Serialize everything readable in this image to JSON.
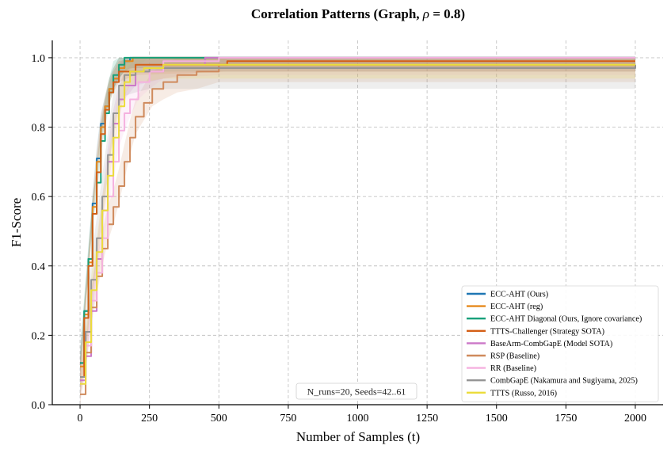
{
  "chart_data": {
    "type": "line",
    "title": "Correlation Patterns (Graph, ρ = 0.8)",
    "title_main": "Correlation Patterns (Graph, ",
    "title_symbol": "ρ",
    "title_tail": " = 0.8)",
    "xlabel": "Number of Samples (t)",
    "ylabel": "F1-Score",
    "xlim": [
      -100,
      2100
    ],
    "ylim": [
      0,
      1.05
    ],
    "xticks": [
      0,
      250,
      500,
      750,
      1000,
      1250,
      1500,
      1750,
      2000
    ],
    "yticks": [
      0.0,
      0.2,
      0.4,
      0.6,
      0.8,
      1.0
    ],
    "grid": true,
    "legend_position": "lower-right",
    "annotation": "N_runs=20, Seeds=42..61",
    "series": [
      {
        "name": "ECC-AHT (Ours)",
        "color": "#1f77b4",
        "points": [
          [
            0,
            0.12
          ],
          [
            15,
            0.27
          ],
          [
            30,
            0.42
          ],
          [
            45,
            0.58
          ],
          [
            60,
            0.71
          ],
          [
            75,
            0.81
          ],
          [
            90,
            0.86
          ],
          [
            105,
            0.91
          ],
          [
            120,
            0.94
          ],
          [
            140,
            0.97
          ],
          [
            160,
            0.99
          ],
          [
            180,
            1.0
          ],
          [
            2000,
            1.0
          ]
        ],
        "band": 0.03
      },
      {
        "name": "ECC-AHT (reg)",
        "color": "#e6891c",
        "points": [
          [
            0,
            0.11
          ],
          [
            15,
            0.26
          ],
          [
            30,
            0.41
          ],
          [
            45,
            0.57
          ],
          [
            60,
            0.7
          ],
          [
            75,
            0.8
          ],
          [
            90,
            0.86
          ],
          [
            105,
            0.91
          ],
          [
            120,
            0.94
          ],
          [
            140,
            0.97
          ],
          [
            160,
            0.99
          ],
          [
            190,
            1.0
          ],
          [
            2000,
            1.0
          ]
        ],
        "band": 0.03
      },
      {
        "name": "ECC-AHT Diagonal (Ours, Ignore covariance)",
        "color": "#17a07a",
        "points": [
          [
            0,
            0.12
          ],
          [
            15,
            0.27
          ],
          [
            30,
            0.42
          ],
          [
            45,
            0.55
          ],
          [
            60,
            0.64
          ],
          [
            75,
            0.76
          ],
          [
            90,
            0.84
          ],
          [
            105,
            0.9
          ],
          [
            120,
            0.95
          ],
          [
            140,
            0.98
          ],
          [
            160,
            1.0
          ],
          [
            2000,
            1.0
          ]
        ],
        "band": 0.04
      },
      {
        "name": "TTTS-Challenger (Strategy SOTA)",
        "color": "#d45f16",
        "points": [
          [
            0,
            0.08
          ],
          [
            15,
            0.25
          ],
          [
            30,
            0.4
          ],
          [
            45,
            0.55
          ],
          [
            60,
            0.67
          ],
          [
            75,
            0.78
          ],
          [
            90,
            0.85
          ],
          [
            105,
            0.9
          ],
          [
            120,
            0.93
          ],
          [
            140,
            0.96
          ],
          [
            200,
            0.98
          ],
          [
            530,
            0.99
          ],
          [
            2000,
            0.99
          ]
        ],
        "band": 0.03
      },
      {
        "name": "BaseArm-CombGapE (Model SOTA)",
        "color": "#cc78c8",
        "points": [
          [
            0,
            0.07
          ],
          [
            20,
            0.14
          ],
          [
            40,
            0.27
          ],
          [
            60,
            0.42
          ],
          [
            80,
            0.56
          ],
          [
            100,
            0.7
          ],
          [
            120,
            0.81
          ],
          [
            140,
            0.88
          ],
          [
            160,
            0.92
          ],
          [
            200,
            0.96
          ],
          [
            300,
            0.98
          ],
          [
            450,
            1.0
          ],
          [
            2000,
            1.0
          ]
        ],
        "band": 0.04
      },
      {
        "name": "RSP (Baseline)",
        "color": "#cf8a5c",
        "points": [
          [
            0,
            0.03
          ],
          [
            20,
            0.15
          ],
          [
            40,
            0.28
          ],
          [
            60,
            0.37
          ],
          [
            80,
            0.45
          ],
          [
            100,
            0.52
          ],
          [
            120,
            0.57
          ],
          [
            140,
            0.63
          ],
          [
            160,
            0.7
          ],
          [
            180,
            0.77
          ],
          [
            200,
            0.83
          ],
          [
            230,
            0.87
          ],
          [
            260,
            0.91
          ],
          [
            300,
            0.93
          ],
          [
            350,
            0.95
          ],
          [
            420,
            0.96
          ],
          [
            500,
            0.98
          ],
          [
            2000,
            0.98
          ]
        ],
        "band": 0.05
      },
      {
        "name": "RR (Baseline)",
        "color": "#f5b1df",
        "points": [
          [
            0,
            0.06
          ],
          [
            20,
            0.17
          ],
          [
            40,
            0.3
          ],
          [
            60,
            0.38
          ],
          [
            80,
            0.48
          ],
          [
            100,
            0.6
          ],
          [
            120,
            0.7
          ],
          [
            140,
            0.79
          ],
          [
            160,
            0.84
          ],
          [
            180,
            0.88
          ],
          [
            210,
            0.93
          ],
          [
            250,
            0.96
          ],
          [
            300,
            0.99
          ],
          [
            500,
            1.0
          ],
          [
            2000,
            1.0
          ]
        ],
        "band": 0.05
      },
      {
        "name": "CombGapE (Nakamura and Sugiyama, 2025)",
        "color": "#949494",
        "points": [
          [
            0,
            0.08
          ],
          [
            20,
            0.21
          ],
          [
            40,
            0.36
          ],
          [
            60,
            0.48
          ],
          [
            80,
            0.6
          ],
          [
            100,
            0.72
          ],
          [
            120,
            0.84
          ],
          [
            140,
            0.92
          ],
          [
            160,
            0.95
          ],
          [
            200,
            0.96
          ],
          [
            250,
            0.97
          ],
          [
            2000,
            0.97
          ],
          [
            2000,
            0.98
          ]
        ],
        "band": 0.06
      },
      {
        "name": "TTTS (Russo, 2016)",
        "color": "#ecdc3a",
        "points": [
          [
            0,
            0.06
          ],
          [
            20,
            0.18
          ],
          [
            40,
            0.33
          ],
          [
            60,
            0.44
          ],
          [
            80,
            0.56
          ],
          [
            100,
            0.66
          ],
          [
            120,
            0.77
          ],
          [
            140,
            0.86
          ],
          [
            160,
            0.93
          ],
          [
            180,
            0.96
          ],
          [
            230,
            0.97
          ],
          [
            300,
            0.98
          ],
          [
            2000,
            0.98
          ]
        ],
        "band": 0.04
      }
    ]
  }
}
